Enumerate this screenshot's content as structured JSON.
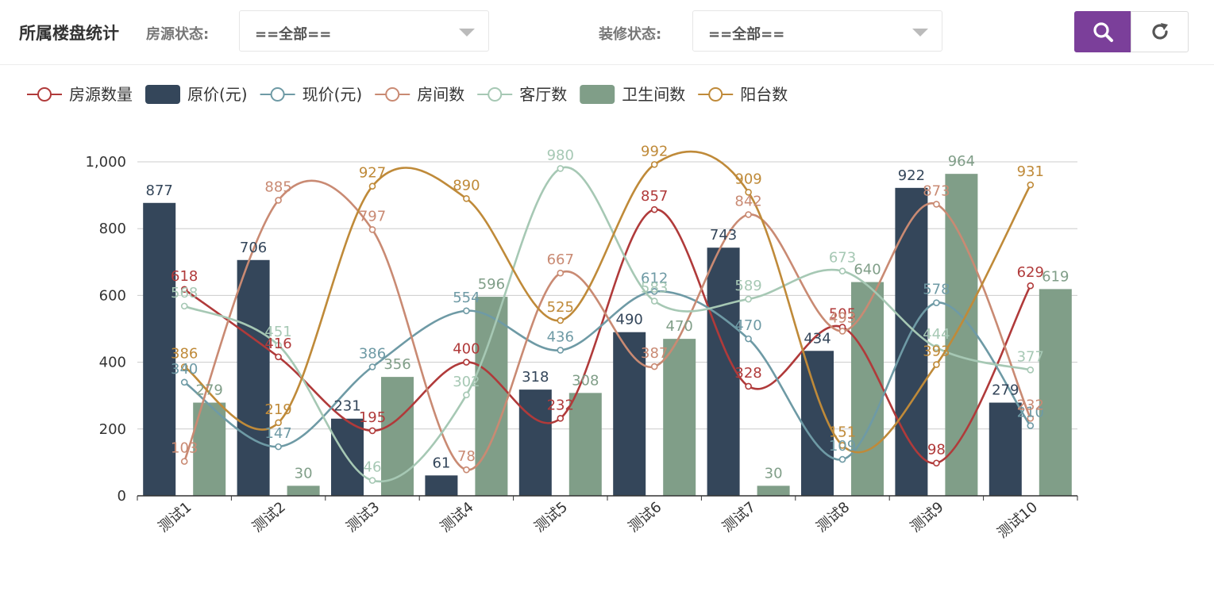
{
  "header": {
    "title": "所属楼盘统计",
    "filter_status_label": "房源状态:",
    "filter_status_value": "==全部==",
    "filter_decor_label": "装修状态:",
    "filter_decor_value": "==全部==",
    "search_icon": "search-icon",
    "refresh_icon": "refresh-icon",
    "accent_color": "#7b3f9a"
  },
  "chart_data": {
    "type": "bar",
    "categories": [
      "测试1",
      "测试2",
      "测试3",
      "测试4",
      "测试5",
      "测试6",
      "测试7",
      "测试8",
      "测试9",
      "测试10"
    ],
    "ylim": [
      0,
      1000
    ],
    "yticks": [
      0,
      200,
      400,
      600,
      800,
      1000
    ],
    "ytick_labels": [
      "0",
      "200",
      "400",
      "600",
      "800",
      "1,000"
    ],
    "grid": true,
    "legend_position": "top-left",
    "series": [
      {
        "name": "房源数量",
        "type": "line",
        "color": "#b03a3a",
        "values": [
          618,
          416,
          195,
          400,
          232,
          857,
          328,
          505,
          98,
          629
        ]
      },
      {
        "name": "原价(元)",
        "type": "bar",
        "color": "#34465a",
        "values": [
          877,
          706,
          231,
          61,
          318,
          490,
          743,
          434,
          922,
          279
        ]
      },
      {
        "name": "现价(元)",
        "type": "line",
        "color": "#6e9aa5",
        "values": [
          340,
          147,
          386,
          554,
          436,
          612,
          470,
          109,
          578,
          210
        ]
      },
      {
        "name": "房间数",
        "type": "line",
        "color": "#c98a73",
        "values": [
          103,
          885,
          797,
          78,
          667,
          387,
          842,
          493,
          873,
          232
        ]
      },
      {
        "name": "客厅数",
        "type": "line",
        "color": "#a6c8b4",
        "values": [
          568,
          451,
          46,
          302,
          980,
          583,
          589,
          673,
          444,
          377
        ]
      },
      {
        "name": "卫生间数",
        "type": "bar",
        "color": "#809e88",
        "values": [
          279,
          30,
          356,
          596,
          308,
          470,
          30,
          640,
          964,
          619
        ]
      },
      {
        "name": "阳台数",
        "type": "line",
        "color": "#bf8a39",
        "values": [
          386,
          219,
          927,
          890,
          525,
          992,
          909,
          151,
          393,
          931
        ]
      }
    ]
  }
}
